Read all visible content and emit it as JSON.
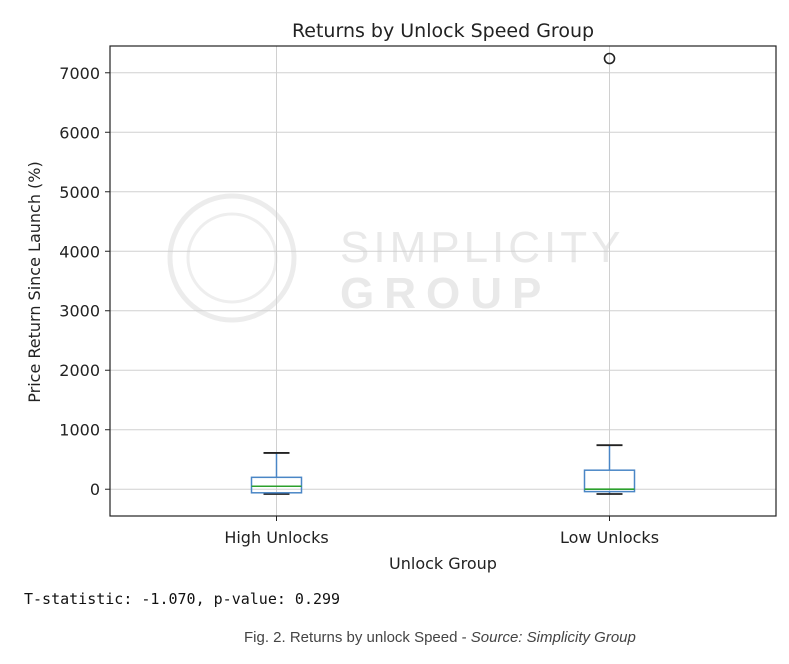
{
  "chart_data": {
    "type": "box",
    "title": "Returns by Unlock Speed Group",
    "xlabel": "Unlock Group",
    "ylabel": "Price Return Since Launch (%)",
    "ylim": [
      -450,
      7450
    ],
    "yticks": [
      0,
      1000,
      2000,
      3000,
      4000,
      5000,
      6000,
      7000
    ],
    "grid": true,
    "categories": [
      "High Unlocks",
      "Low Unlocks"
    ],
    "boxes": [
      {
        "category": "High Unlocks",
        "whisker_low": -80,
        "q1": -60,
        "median": 50,
        "q3": 200,
        "whisker_high": 610,
        "outliers": []
      },
      {
        "category": "Low Unlocks",
        "whisker_low": -80,
        "q1": -40,
        "median": 0,
        "q3": 320,
        "whisker_high": 740,
        "outliers": [
          7240
        ]
      }
    ],
    "colors": {
      "box": "#4a86c6",
      "median": "#2ca02c",
      "whisker_cap": "#222222",
      "grid": "#d0d0d0"
    }
  },
  "watermark": {
    "line1": "SIMPLICITY",
    "line2": "GROUP"
  },
  "stats_text": "T-statistic: -1.070, p-value: 0.299",
  "caption": {
    "prefix": "Fig. 2. Returns by unlock Speed - ",
    "source": "Source: Simplicity Group"
  }
}
